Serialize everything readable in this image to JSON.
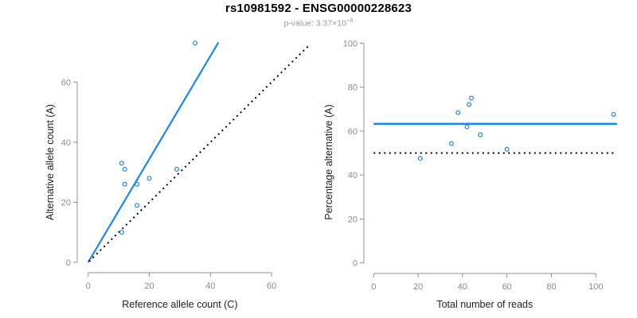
{
  "header": {
    "title": "rs10981592 - ENSG00000228623",
    "p_value_label": "p-value: 3.37×10",
    "p_value_exponent": "−8"
  },
  "style": {
    "accent_blue": "#1C86EE",
    "dotted_black": "#000000",
    "axis_gray": "#909090",
    "tick_label_gray": "#8c8c8c",
    "axis_title_color": "#1f1f1f",
    "title_color": "#000000",
    "subtitle_gray": "#9c9c9c",
    "background": "#ffffff"
  },
  "chart_data": [
    {
      "type": "scatter",
      "panel": "allele-counts",
      "xlabel": "Reference allele count (C)",
      "ylabel": "Alternative allele count (A)",
      "xlim": [
        0,
        60
      ],
      "ylim": [
        0,
        60
      ],
      "xticks": [
        0,
        20,
        40,
        60
      ],
      "yticks": [
        0,
        20,
        40,
        60
      ],
      "grid": false,
      "legend": "none",
      "points": [
        [
          35,
          73
        ],
        [
          11,
          33
        ],
        [
          12,
          31
        ],
        [
          12,
          26
        ],
        [
          16,
          26
        ],
        [
          20,
          28
        ],
        [
          16,
          19
        ],
        [
          29,
          31
        ],
        [
          11,
          10
        ]
      ],
      "lines": [
        {
          "name": "regression-line",
          "x1": 0,
          "y1": 0,
          "x2": 42.6,
          "y2": 73.2,
          "color": "#1C86EE",
          "width": 2.2,
          "dash": ""
        },
        {
          "name": "identity-line",
          "x1": 0.3,
          "y1": 0.3,
          "x2": 72,
          "y2": 72,
          "color": "#000000",
          "width": 2,
          "dash": "2 4.5"
        }
      ]
    },
    {
      "type": "scatter",
      "panel": "percentage-vs-coverage",
      "xlabel": "Total number of reads",
      "ylabel": "Percentage alternative (A)",
      "xlim": [
        0,
        100
      ],
      "ylim": [
        0,
        100
      ],
      "xticks": [
        0,
        20,
        40,
        60,
        80,
        100
      ],
      "yticks": [
        0,
        20,
        40,
        60,
        80,
        100
      ],
      "grid": false,
      "legend": "none",
      "points": [
        [
          108,
          67.6
        ],
        [
          44,
          75
        ],
        [
          43,
          72.1
        ],
        [
          38,
          68.4
        ],
        [
          42,
          61.9
        ],
        [
          48,
          58.3
        ],
        [
          35,
          54.3
        ],
        [
          60,
          51.7
        ],
        [
          21,
          47.6
        ]
      ],
      "lines": [
        {
          "name": "mean-percentage-line",
          "x1": 0,
          "y1": 63.3,
          "x2": 109.5,
          "y2": 63.3,
          "color": "#1C86EE",
          "width": 2.5,
          "dash": ""
        },
        {
          "name": "fifty-percent-line",
          "x1": 0,
          "y1": 50,
          "x2": 109.5,
          "y2": 50,
          "color": "#000000",
          "width": 2,
          "dash": "2 4.5"
        }
      ]
    }
  ]
}
